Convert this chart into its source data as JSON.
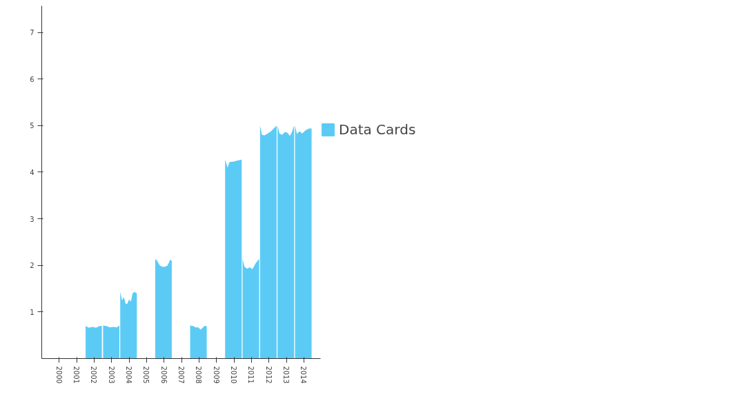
{
  "chart_data": {
    "type": "area",
    "legend": "right",
    "grid": false,
    "xlim": [
      1999,
      2014.95
    ],
    "xticks": [
      2000,
      2001,
      2002,
      2003,
      2004,
      2005,
      2006,
      2007,
      2008,
      2009,
      2010,
      2011,
      2012,
      2013,
      2014
    ],
    "ylim": [
      0,
      7.57
    ],
    "yticks": [
      1,
      2,
      3,
      4,
      5,
      6,
      7
    ],
    "x": [
      2001.51,
      2001.7,
      2001.9,
      2002.1,
      2002.3,
      2002.44,
      2002.47,
      2002.51,
      2002.7,
      2002.9,
      2003.1,
      2003.3,
      2003.44,
      2003.47,
      2003.49,
      2003.6,
      2003.7,
      2003.8,
      2003.9,
      2004.0,
      2004.1,
      2004.2,
      2004.3,
      2004.44,
      2004.47,
      2005.49,
      2005.6,
      2005.75,
      2005.9,
      2006.05,
      2006.2,
      2006.35,
      2006.44,
      2006.47,
      2007.49,
      2007.65,
      2007.8,
      2007.95,
      2008.1,
      2008.3,
      2008.44,
      2008.47,
      2009.49,
      2009.63,
      2009.75,
      2009.9,
      2010.2,
      2010.44,
      2010.47,
      2010.49,
      2010.6,
      2010.75,
      2010.9,
      2011.05,
      2011.25,
      2011.44,
      2011.47,
      2011.49,
      2011.6,
      2011.75,
      2012.1,
      2012.44,
      2012.47,
      2012.49,
      2012.6,
      2012.75,
      2012.9,
      2013.05,
      2013.2,
      2013.3,
      2013.44,
      2013.47,
      2013.49,
      2013.6,
      2013.75,
      2013.9,
      2014.1,
      2014.3,
      2014.44
    ],
    "series": [
      {
        "name": "Data Cards",
        "color": "#5bcbf5",
        "values": [
          0.7,
          0.66,
          0.68,
          0.66,
          0.7,
          0.7,
          null,
          0.71,
          0.7,
          0.67,
          0.68,
          0.67,
          0.71,
          null,
          1.43,
          1.25,
          1.32,
          1.17,
          1.18,
          1.27,
          1.22,
          1.4,
          1.43,
          1.4,
          null,
          2.14,
          2.1,
          2.0,
          1.97,
          1.97,
          2.0,
          2.12,
          2.1,
          null,
          0.71,
          0.7,
          0.67,
          0.67,
          0.62,
          0.7,
          0.7,
          null,
          4.27,
          4.1,
          4.22,
          4.22,
          4.25,
          4.27,
          null,
          2.14,
          1.97,
          1.93,
          1.96,
          1.92,
          2.05,
          2.14,
          null,
          5.0,
          4.8,
          4.79,
          4.87,
          5.0,
          null,
          5.0,
          4.83,
          4.8,
          4.86,
          4.85,
          4.78,
          4.85,
          5.0,
          null,
          5.0,
          4.82,
          4.88,
          4.83,
          4.9,
          4.94,
          4.94
        ]
      }
    ]
  }
}
